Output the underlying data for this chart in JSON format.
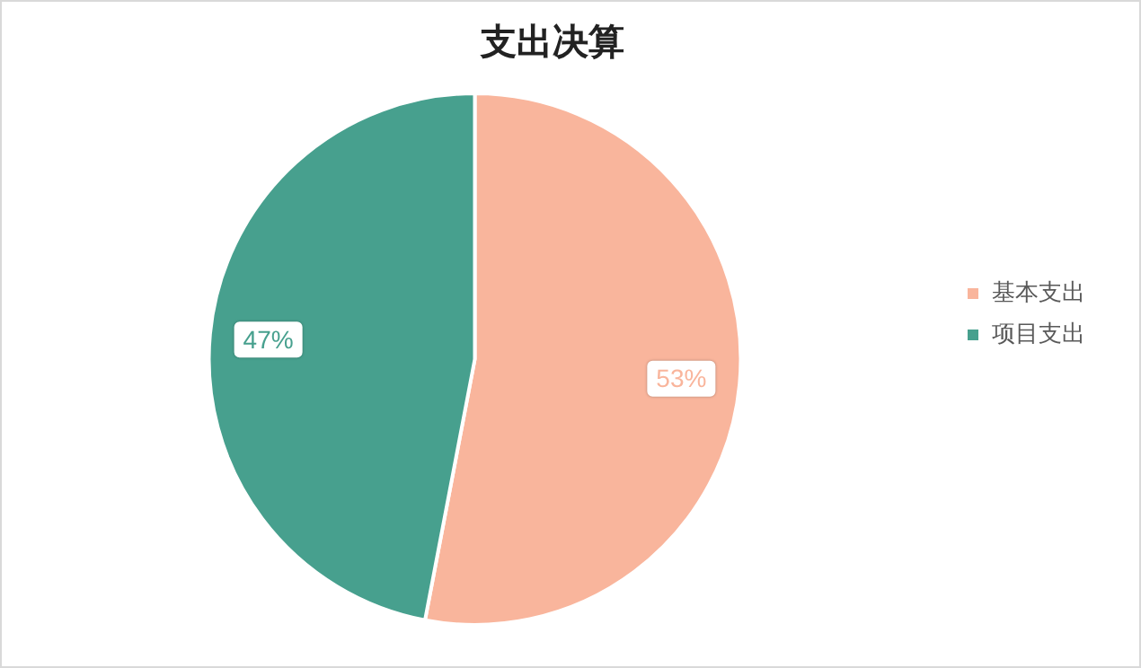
{
  "chart_data": {
    "type": "pie",
    "title": "支出决算",
    "categories": [
      "基本支出",
      "项目支出"
    ],
    "values": [
      53,
      47
    ],
    "colors": [
      "#f9b59c",
      "#47a08e"
    ],
    "value_labels": [
      "53%",
      "47%"
    ],
    "legend": "right"
  }
}
